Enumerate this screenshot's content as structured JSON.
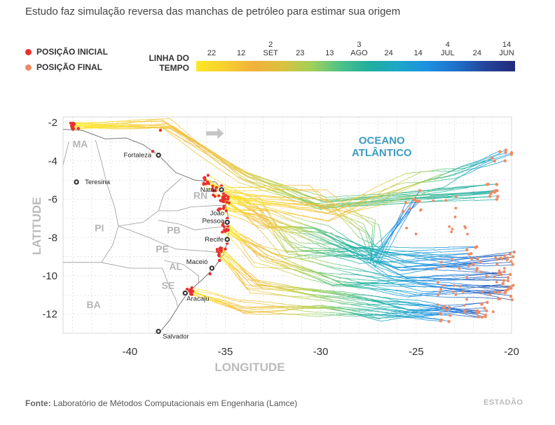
{
  "title": "Estudo faz simulação reversa das manchas de petróleo para estimar sua origem",
  "legend": {
    "initial": {
      "label": "POSIÇÃO INICIAL",
      "color": "#e8302e"
    },
    "final": {
      "label": "POSIÇÃO FINAL",
      "color": "#f08a64"
    }
  },
  "timeline": {
    "label_line1": "LINHA DO",
    "label_line2": "TEMPO",
    "ticks": [
      {
        "day": "22",
        "month": ""
      },
      {
        "day": "12",
        "month": ""
      },
      {
        "day": "2",
        "month": "SET"
      },
      {
        "day": "23",
        "month": ""
      },
      {
        "day": "13",
        "month": ""
      },
      {
        "day": "3",
        "month": "AGO"
      },
      {
        "day": "24",
        "month": ""
      },
      {
        "day": "14",
        "month": ""
      },
      {
        "day": "4",
        "month": "JUL"
      },
      {
        "day": "24",
        "month": ""
      },
      {
        "day": "14",
        "month": "JUN"
      }
    ],
    "colors": [
      "#fde725",
      "#f7cf2e",
      "#f2b13a",
      "#d9c23e",
      "#9fd05a",
      "#4cc08a",
      "#1fae9e",
      "#1da7c9",
      "#1e90e0",
      "#1f6ec8",
      "#23449a",
      "#232a7a"
    ]
  },
  "chart_data": {
    "type": "map",
    "xlabel": "LONGITUDE",
    "ylabel": "LATITUDE",
    "xlim": [
      -43.5,
      -20
    ],
    "ylim": [
      -13,
      -1.7
    ],
    "x_ticks": [
      -40,
      -35,
      -30,
      -25,
      -20
    ],
    "y_ticks": [
      -2,
      -4,
      -6,
      -8,
      -10,
      -12
    ],
    "grid": true,
    "ocean_label": [
      "OCEANO",
      "ATLÂNTICO"
    ],
    "states": [
      {
        "name": "MA",
        "lon": -42.6,
        "lat": -3.1
      },
      {
        "name": "PI",
        "lon": -41.6,
        "lat": -7.5
      },
      {
        "name": "RN",
        "lon": -36.3,
        "lat": -5.8
      },
      {
        "name": "PB",
        "lon": -37.7,
        "lat": -7.6
      },
      {
        "name": "PE",
        "lon": -38.3,
        "lat": -8.6
      },
      {
        "name": "AL",
        "lon": -37.6,
        "lat": -9.5
      },
      {
        "name": "SE",
        "lon": -38.0,
        "lat": -10.5
      },
      {
        "name": "BA",
        "lon": -41.9,
        "lat": -11.5
      }
    ],
    "cities": [
      {
        "name": "Fortaleza",
        "lon": -38.5,
        "lat": -3.7
      },
      {
        "name": "Teresina",
        "lon": -42.8,
        "lat": -5.1
      },
      {
        "name": "Natal",
        "lon": -35.2,
        "lat": -5.5
      },
      {
        "name": "João",
        "name2": "Pessoa",
        "lon": -34.9,
        "lat": -7.2
      },
      {
        "name": "Recife",
        "lon": -34.9,
        "lat": -8.1
      },
      {
        "name": "Maceió",
        "lon": -35.7,
        "lat": -9.6
      },
      {
        "name": "Aracaju",
        "lon": -37.1,
        "lat": -10.9
      },
      {
        "name": "Salvador",
        "lon": -38.5,
        "lat": -12.9
      }
    ]
  },
  "source": {
    "label": "Fonte:",
    "text": "Laboratório de Métodos Computacionais em Engenharia (Lamce)"
  },
  "brand": "ESTADÃO"
}
